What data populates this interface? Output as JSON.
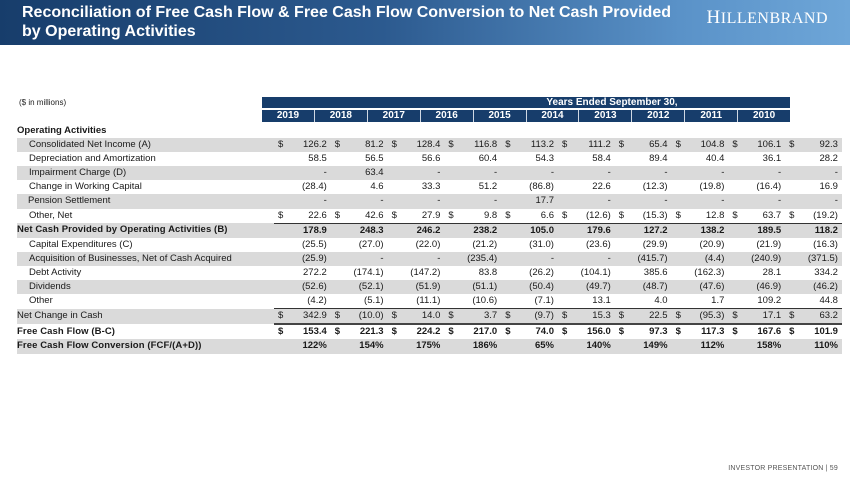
{
  "header": {
    "title": "Reconciliation of Free Cash Flow & Free Cash Flow Conversion to Net Cash Provided by Operating Activities",
    "logo_first": "H",
    "logo_rest": "ILLENBRAND"
  },
  "table": {
    "units_note": "($ in millions)",
    "period_header": "Years Ended September 30,",
    "years": [
      "2019",
      "2018",
      "2017",
      "2016",
      "2015",
      "2014",
      "2013",
      "2012",
      "2011",
      "2010"
    ],
    "section_label": "Operating Activities",
    "rows": [
      {
        "label": "Consolidated Net Income (A)",
        "currency": "$",
        "values": [
          "126.2",
          "81.2",
          "128.4",
          "116.8",
          "113.2",
          "111.2",
          "65.4",
          "104.8",
          "106.1",
          "92.3"
        ]
      },
      {
        "label": "Depreciation and Amortization",
        "currency": "",
        "values": [
          "58.5",
          "56.5",
          "56.6",
          "60.4",
          "54.3",
          "58.4",
          "89.4",
          "40.4",
          "36.1",
          "28.2"
        ]
      },
      {
        "label": "Impairment Charge (D)",
        "currency": "",
        "values": [
          "-",
          "63.4",
          "-",
          "-",
          "-",
          "-",
          "-",
          "-",
          "-",
          "-"
        ]
      },
      {
        "label": "Change in Working Capital",
        "currency": "",
        "values": [
          "(28.4)",
          "4.6",
          "33.3",
          "51.2",
          "(86.8)",
          "22.6",
          "(12.3)",
          "(19.8)",
          "(16.4)",
          "16.9"
        ]
      },
      {
        "label": "Pension Settlement",
        "currency": "",
        "values": [
          "-",
          "-",
          "-",
          "-",
          "17.7",
          "-",
          "-",
          "-",
          "-",
          "-"
        ]
      },
      {
        "label": "Other, Net",
        "currency": "$",
        "values": [
          "22.6",
          "42.6",
          "27.9",
          "9.8",
          "6.6",
          "(12.6)",
          "(15.3)",
          "12.8",
          "63.7",
          "(19.2)"
        ]
      },
      {
        "label": "Net Cash Provided by Operating Activities (B)",
        "currency": "",
        "values": [
          "178.9",
          "248.3",
          "246.2",
          "238.2",
          "105.0",
          "179.6",
          "127.2",
          "138.2",
          "189.5",
          "118.2"
        ]
      },
      {
        "label": "Capital Expenditures (C)",
        "currency": "",
        "values": [
          "(25.5)",
          "(27.0)",
          "(22.0)",
          "(21.2)",
          "(31.0)",
          "(23.6)",
          "(29.9)",
          "(20.9)",
          "(21.9)",
          "(16.3)"
        ]
      },
      {
        "label": "Acquisition of Businesses, Net of Cash Acquired",
        "currency": "",
        "values": [
          "(25.9)",
          "-",
          "-",
          "(235.4)",
          "-",
          "-",
          "(415.7)",
          "(4.4)",
          "(240.9)",
          "(371.5)"
        ]
      },
      {
        "label": "Debt Activity",
        "currency": "",
        "values": [
          "272.2",
          "(174.1)",
          "(147.2)",
          "83.8",
          "(26.2)",
          "(104.1)",
          "385.6",
          "(162.3)",
          "28.1",
          "334.2"
        ]
      },
      {
        "label": "Dividends",
        "currency": "",
        "values": [
          "(52.6)",
          "(52.1)",
          "(51.9)",
          "(51.1)",
          "(50.4)",
          "(49.7)",
          "(48.7)",
          "(47.6)",
          "(46.9)",
          "(46.2)"
        ]
      },
      {
        "label": "Other",
        "currency": "",
        "values": [
          "(4.2)",
          "(5.1)",
          "(11.1)",
          "(10.6)",
          "(7.1)",
          "13.1",
          "4.0",
          "1.7",
          "109.2",
          "44.8"
        ]
      },
      {
        "label": "Net Change in Cash",
        "currency": "$",
        "values": [
          "342.9",
          "(10.0)",
          "14.0",
          "3.7",
          "(9.7)",
          "15.3",
          "22.5",
          "(95.3)",
          "17.1",
          "63.2"
        ]
      },
      {
        "label": "Free Cash Flow (B-C)",
        "currency": "$",
        "values": [
          "153.4",
          "221.3",
          "224.2",
          "217.0",
          "74.0",
          "156.0",
          "97.3",
          "117.3",
          "167.6",
          "101.9"
        ]
      },
      {
        "label": "Free Cash Flow Conversion (FCF/(A+D))",
        "currency": "",
        "values": [
          "122%",
          "154%",
          "175%",
          "186%",
          "65%",
          "140%",
          "149%",
          "112%",
          "158%",
          "110%"
        ]
      }
    ]
  },
  "footer": {
    "text": "INVESTOR PRESENTATION | 59"
  }
}
